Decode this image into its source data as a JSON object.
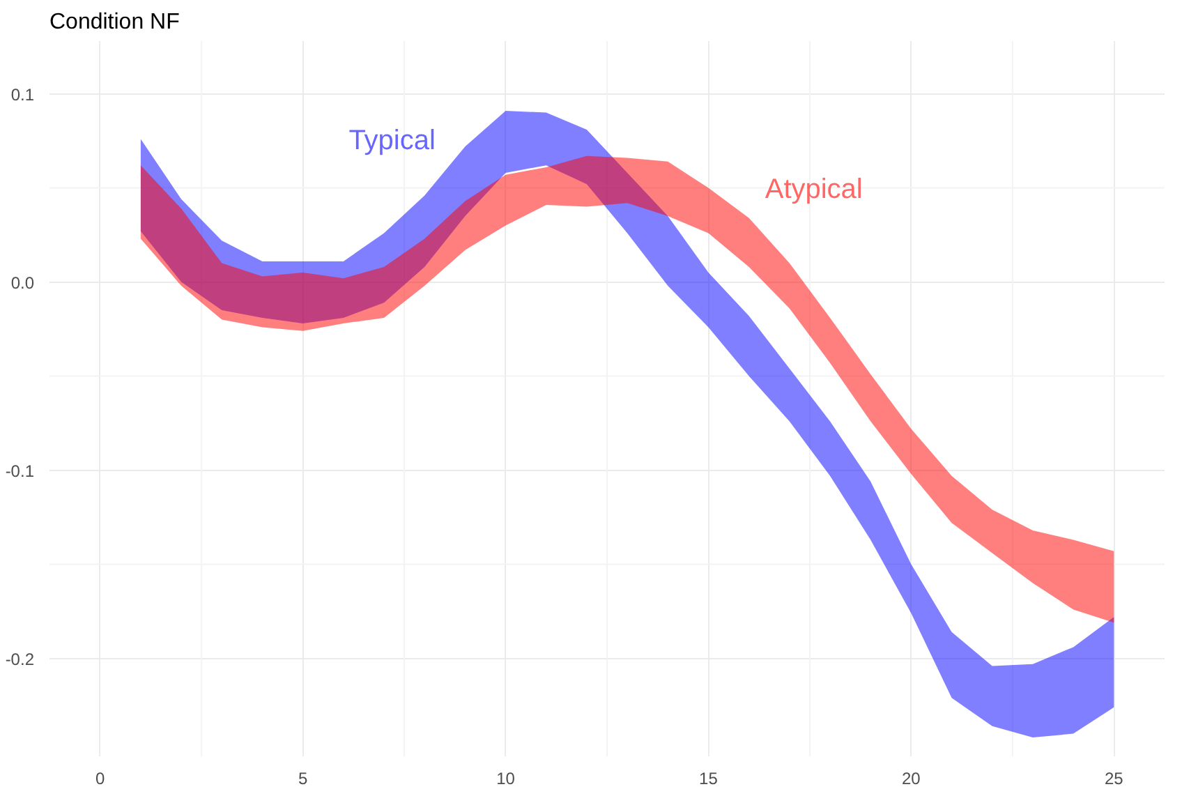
{
  "chart_data": {
    "type": "area",
    "title": "Condition NF",
    "x": [
      1,
      2,
      3,
      4,
      5,
      6,
      7,
      8,
      9,
      10,
      11,
      12,
      13,
      14,
      15,
      16,
      17,
      18,
      19,
      20,
      21,
      22,
      23,
      24,
      25
    ],
    "series": [
      {
        "name": "Typical",
        "color": "#0000ff",
        "values": [
          null,
          null,
          null,
          null,
          null,
          null,
          null,
          null,
          null,
          null,
          null,
          null,
          null,
          null,
          null,
          null,
          null,
          null,
          null,
          null,
          null,
          null,
          null,
          null,
          null
        ],
        "lower": [
          0.027,
          0.0,
          -0.015,
          -0.019,
          -0.022,
          -0.019,
          -0.011,
          0.008,
          0.035,
          0.058,
          0.062,
          0.052,
          0.026,
          -0.002,
          -0.024,
          -0.05,
          -0.074,
          -0.103,
          -0.137,
          -0.176,
          -0.221,
          -0.236,
          -0.242,
          -0.24,
          -0.226
        ],
        "upper": [
          0.076,
          0.044,
          0.022,
          0.011,
          0.011,
          0.011,
          0.026,
          0.046,
          0.072,
          0.091,
          0.09,
          0.081,
          0.058,
          0.035,
          0.005,
          -0.018,
          -0.046,
          -0.074,
          -0.106,
          -0.15,
          -0.186,
          -0.204,
          -0.203,
          -0.194,
          -0.178
        ]
      },
      {
        "name": "Atypical",
        "color": "#ff0000",
        "values": [
          null,
          null,
          null,
          null,
          null,
          null,
          null,
          null,
          null,
          null,
          null,
          null,
          null,
          null,
          null,
          null,
          null,
          null,
          null,
          null,
          null,
          null,
          null,
          null,
          null
        ],
        "lower": [
          0.023,
          -0.002,
          -0.02,
          -0.024,
          -0.026,
          -0.022,
          -0.019,
          -0.002,
          0.017,
          0.03,
          0.041,
          0.04,
          0.042,
          0.035,
          0.026,
          0.008,
          -0.014,
          -0.043,
          -0.074,
          -0.102,
          -0.128,
          -0.144,
          -0.16,
          -0.174,
          -0.181
        ],
        "upper": [
          0.062,
          0.039,
          0.01,
          0.003,
          0.005,
          0.002,
          0.008,
          0.023,
          0.043,
          0.057,
          0.061,
          0.067,
          0.066,
          0.064,
          0.05,
          0.034,
          0.01,
          -0.019,
          -0.049,
          -0.078,
          -0.103,
          -0.121,
          -0.132,
          -0.137,
          -0.143
        ]
      }
    ],
    "xlim": [
      -1.25,
      26.25
    ],
    "ylim": [
      -0.252,
      0.128
    ],
    "xticks": [
      0,
      5,
      10,
      15,
      20,
      25
    ],
    "yticks": [
      -0.2,
      -0.1,
      {
        "value": 0,
        "label": "0.0"
      },
      0.1
    ],
    "grid": true
  }
}
